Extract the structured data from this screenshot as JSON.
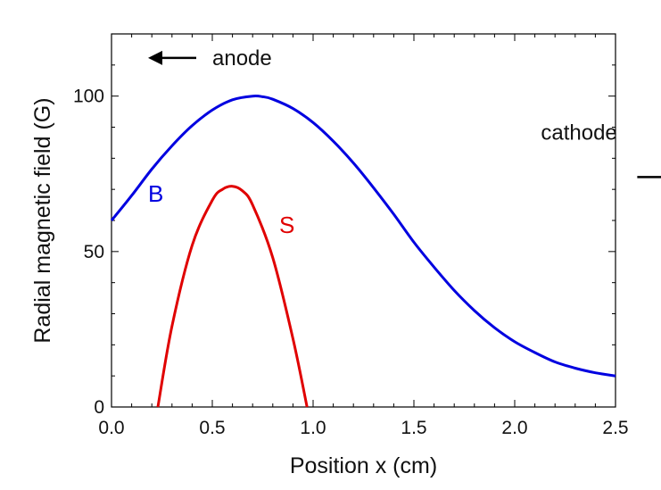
{
  "chart_data": {
    "type": "line",
    "xlabel": "Position x (cm)",
    "ylabel": "Radial magnetic field (G)",
    "xlim": [
      0,
      2.5
    ],
    "ylim": [
      0,
      120
    ],
    "xticks": [
      0.0,
      0.5,
      1.0,
      1.5,
      2.0,
      2.5
    ],
    "xtick_labels": [
      "0.0",
      "0.5",
      "1.0",
      "1.5",
      "2.0",
      "2.5"
    ],
    "yticks": [
      0,
      50,
      100
    ],
    "ytick_labels": [
      "0",
      "50",
      "100"
    ],
    "grid": false,
    "series": [
      {
        "name": "B",
        "color": "#0000e0",
        "x": [
          0.0,
          0.1,
          0.2,
          0.3,
          0.4,
          0.5,
          0.6,
          0.7,
          0.75,
          0.8,
          0.9,
          1.0,
          1.1,
          1.2,
          1.3,
          1.4,
          1.5,
          1.6,
          1.7,
          1.8,
          1.9,
          2.0,
          2.1,
          2.2,
          2.3,
          2.4,
          2.5
        ],
        "y": [
          60,
          68,
          76.5,
          84,
          90.5,
          95.5,
          98.8,
          100,
          99.8,
          99,
          96,
          91.5,
          85.5,
          78.5,
          70.5,
          62,
          53,
          45,
          37.5,
          31,
          25.5,
          21,
          17.5,
          14.5,
          12.5,
          11,
          10
        ]
      },
      {
        "name": "S",
        "color": "#e00000",
        "x": [
          0.23,
          0.3,
          0.4,
          0.5,
          0.55,
          0.6,
          0.65,
          0.7,
          0.8,
          0.9,
          0.97
        ],
        "y": [
          0,
          26,
          52,
          66.5,
          70,
          71,
          69.5,
          65,
          48,
          22,
          0
        ]
      }
    ],
    "annotations": [
      {
        "text": "anode",
        "arrow": "left",
        "x": 0.5,
        "y": 110
      },
      {
        "text": "cathode",
        "arrow": "right",
        "x": 2.13,
        "y": 86
      }
    ]
  }
}
